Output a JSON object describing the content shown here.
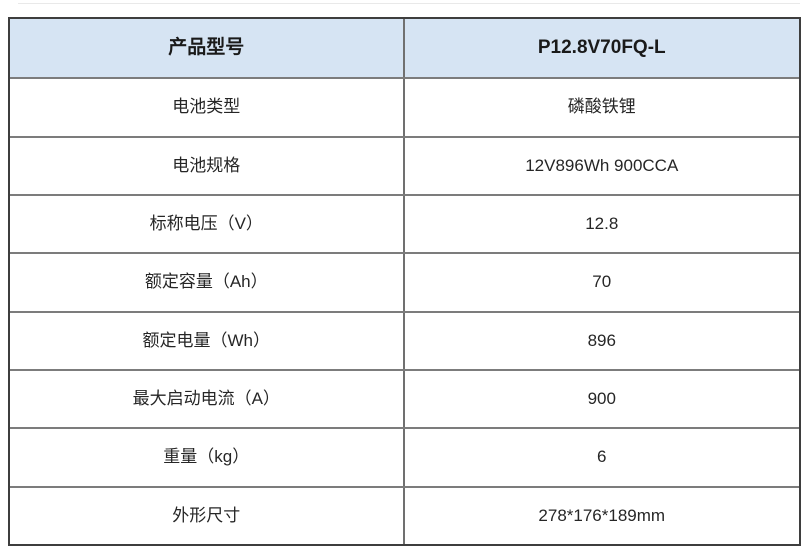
{
  "table": {
    "header": {
      "label": "产品型号",
      "value": "P12.8V70FQ-L"
    },
    "rows": [
      {
        "label": "电池类型",
        "value": "磷酸铁锂"
      },
      {
        "label": "电池规格",
        "value": "12V896Wh 900CCA"
      },
      {
        "label": "标称电压（V）",
        "value": "12.8"
      },
      {
        "label": "额定容量（Ah）",
        "value": "70"
      },
      {
        "label": "额定电量（Wh）",
        "value": "896"
      },
      {
        "label": "最大启动电流（A）",
        "value": "900"
      },
      {
        "label": "重量（kg）",
        "value": "6"
      },
      {
        "label": "外形尺寸",
        "value": "278*176*189mm"
      }
    ]
  },
  "colors": {
    "header_bg": "#d6e4f3",
    "outer_border": "#3e3e3e",
    "inner_horizontal_border": "#7c7c7c",
    "inner_vertical_border": "#707070",
    "header_text": "#1a1a1a",
    "body_text": "#262626"
  }
}
